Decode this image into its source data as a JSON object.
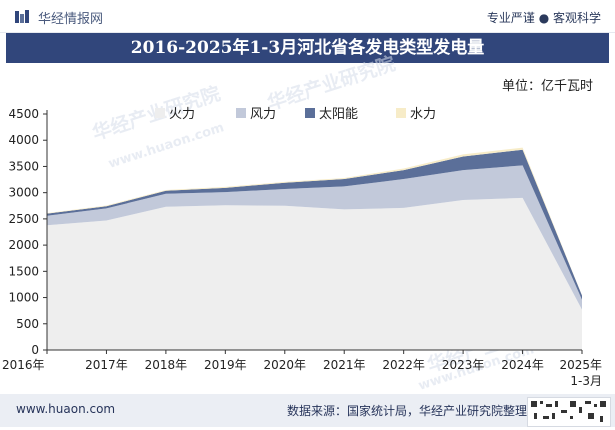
{
  "header": {
    "brand": "华经情报网",
    "tagline": "专业严谨 ● 客观科学"
  },
  "title": "2016-2025年1-3月河北省各发电类型发电量",
  "unit_label": "单位：亿千瓦时",
  "footer": {
    "url": "www.huaon.com",
    "source": "数据来源：国家统计局，华经产业研究院整理"
  },
  "colors": {
    "title_bg": "#31467b",
    "thermal": "#eeeeee",
    "wind": "#c2c9da",
    "solar": "#5b6f99",
    "hydro": "#f7ecc8"
  },
  "chart_data": {
    "type": "area",
    "stacked": true,
    "title": "2016-2025年1-3月河北省各发电类型发电量",
    "ylabel": "单位：亿千瓦时",
    "xlabel": "",
    "ylim": [
      0,
      4500
    ],
    "yticks": [
      0,
      500,
      1000,
      1500,
      2000,
      2500,
      3000,
      3500,
      4000,
      4500
    ],
    "categories": [
      "2016年",
      "2017年",
      "2018年",
      "2019年",
      "2020年",
      "2021年",
      "2022年",
      "2023年",
      "2024年",
      "2025年\n1-3月"
    ],
    "legend_position": "top",
    "series": [
      {
        "name": "火力",
        "color": "#eeeeee",
        "values": [
          2380,
          2470,
          2730,
          2760,
          2750,
          2680,
          2710,
          2860,
          2900,
          770
        ]
      },
      {
        "name": "风力",
        "color": "#c2c9da",
        "values": [
          180,
          230,
          250,
          250,
          320,
          440,
          550,
          570,
          620,
          190
        ]
      },
      {
        "name": "太阳能",
        "color": "#5b6f99",
        "values": [
          40,
          40,
          55,
          80,
          120,
          140,
          170,
          260,
          300,
          80
        ]
      },
      {
        "name": "水力",
        "color": "#f7ecc8",
        "values": [
          10,
          15,
          15,
          20,
          15,
          20,
          30,
          40,
          40,
          5
        ]
      }
    ]
  }
}
